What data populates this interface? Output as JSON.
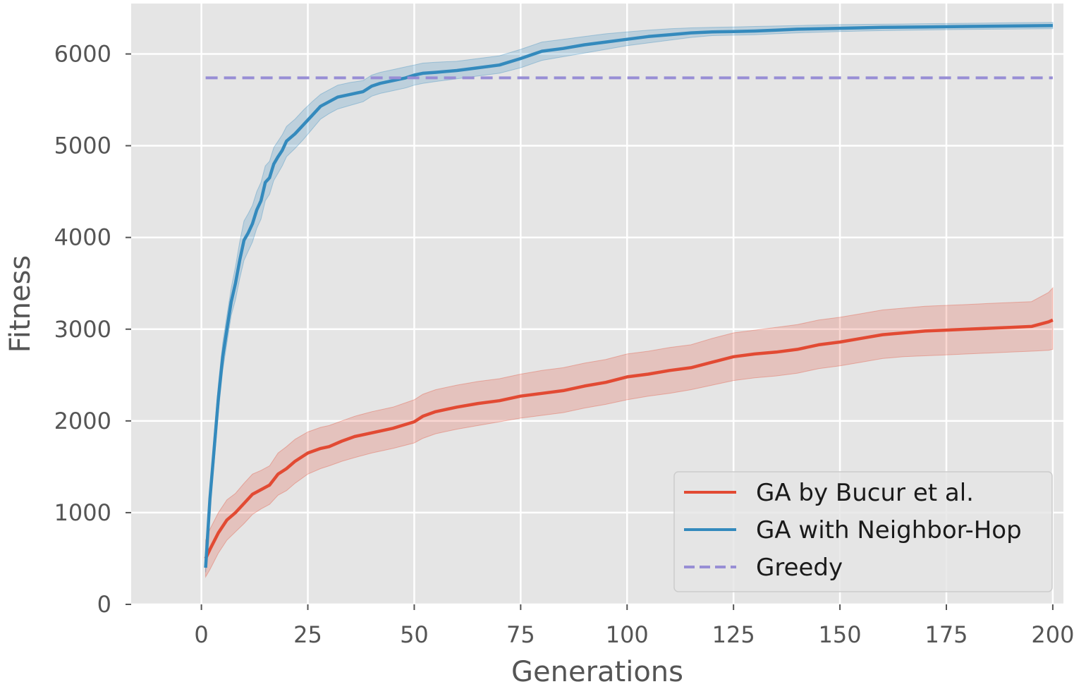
{
  "chart_data": {
    "type": "line",
    "title": "",
    "xlabel": "Generations",
    "ylabel": "Fitness",
    "xlim": [
      -16.5,
      202.5
    ],
    "ylim": [
      0,
      6550
    ],
    "xticks": [
      0,
      25,
      50,
      75,
      100,
      125,
      150,
      175,
      200
    ],
    "yticks": [
      0,
      1000,
      2000,
      3000,
      4000,
      5000,
      6000
    ],
    "grid": true,
    "legend_position": "lower right",
    "colors": {
      "background": "#e5e5e5",
      "grid": "#ffffff",
      "ga_bucur": "#e24a33",
      "ga_neighbor": "#348abd",
      "greedy": "#988ed5"
    },
    "series": [
      {
        "name": "GA by Bucur et al.",
        "color": "#e24a33",
        "style": "solid",
        "x": [
          1,
          2,
          4,
          6,
          8,
          10,
          12,
          14,
          16,
          18,
          20,
          22,
          25,
          28,
          30,
          33,
          36,
          40,
          45,
          50,
          52,
          55,
          60,
          65,
          70,
          75,
          80,
          85,
          90,
          95,
          100,
          105,
          110,
          115,
          120,
          125,
          130,
          135,
          140,
          145,
          150,
          155,
          160,
          165,
          170,
          175,
          180,
          185,
          190,
          195,
          199,
          200
        ],
        "y": [
          500,
          600,
          780,
          920,
          1000,
          1100,
          1200,
          1250,
          1300,
          1420,
          1480,
          1560,
          1650,
          1700,
          1720,
          1780,
          1830,
          1870,
          1920,
          1990,
          2050,
          2100,
          2150,
          2190,
          2220,
          2270,
          2300,
          2330,
          2380,
          2420,
          2480,
          2510,
          2550,
          2580,
          2640,
          2700,
          2730,
          2750,
          2780,
          2830,
          2860,
          2900,
          2940,
          2960,
          2980,
          2990,
          3000,
          3010,
          3020,
          3030,
          3080,
          3100
        ],
        "lower": [
          300,
          380,
          560,
          700,
          790,
          880,
          980,
          1040,
          1090,
          1190,
          1240,
          1320,
          1420,
          1480,
          1510,
          1560,
          1600,
          1650,
          1700,
          1760,
          1810,
          1860,
          1910,
          1950,
          1990,
          2030,
          2060,
          2090,
          2140,
          2180,
          2230,
          2270,
          2300,
          2340,
          2390,
          2440,
          2470,
          2490,
          2520,
          2570,
          2600,
          2640,
          2680,
          2700,
          2710,
          2720,
          2730,
          2740,
          2750,
          2760,
          2770,
          2780
        ],
        "upper": [
          700,
          820,
          1000,
          1140,
          1210,
          1320,
          1420,
          1460,
          1510,
          1650,
          1720,
          1800,
          1880,
          1930,
          1950,
          2000,
          2050,
          2100,
          2150,
          2230,
          2290,
          2340,
          2390,
          2430,
          2460,
          2510,
          2550,
          2580,
          2630,
          2670,
          2730,
          2760,
          2800,
          2830,
          2900,
          2960,
          2990,
          3020,
          3050,
          3100,
          3130,
          3170,
          3210,
          3230,
          3250,
          3260,
          3270,
          3280,
          3290,
          3300,
          3400,
          3450
        ]
      },
      {
        "name": "GA with Neighbor-Hop",
        "color": "#348abd",
        "style": "solid",
        "x": [
          1,
          2,
          3,
          4,
          5,
          6,
          7,
          8,
          9,
          10,
          11,
          12,
          13,
          14,
          15,
          16,
          17,
          18,
          19,
          20,
          22,
          24,
          26,
          28,
          30,
          32,
          35,
          38,
          40,
          42,
          45,
          48,
          50,
          52,
          55,
          60,
          65,
          70,
          75,
          80,
          85,
          90,
          95,
          100,
          105,
          110,
          115,
          120,
          125,
          130,
          135,
          140,
          150,
          160,
          170,
          180,
          190,
          200
        ],
        "y": [
          400,
          1150,
          1700,
          2250,
          2700,
          3000,
          3300,
          3500,
          3750,
          3970,
          4050,
          4150,
          4300,
          4400,
          4600,
          4650,
          4800,
          4880,
          4950,
          5050,
          5130,
          5230,
          5330,
          5430,
          5480,
          5530,
          5560,
          5590,
          5650,
          5680,
          5710,
          5740,
          5770,
          5790,
          5800,
          5820,
          5850,
          5880,
          5950,
          6030,
          6060,
          6100,
          6130,
          6160,
          6190,
          6210,
          6230,
          6240,
          6245,
          6250,
          6260,
          6270,
          6280,
          6290,
          6295,
          6300,
          6305,
          6310
        ],
        "lower": [
          350,
          1050,
          1550,
          2100,
          2550,
          2850,
          3150,
          3320,
          3550,
          3750,
          3850,
          3950,
          4100,
          4200,
          4400,
          4470,
          4620,
          4700,
          4780,
          4880,
          4970,
          5070,
          5180,
          5290,
          5350,
          5400,
          5440,
          5480,
          5540,
          5570,
          5600,
          5630,
          5660,
          5680,
          5700,
          5730,
          5760,
          5790,
          5850,
          5930,
          5970,
          6010,
          6050,
          6090,
          6120,
          6150,
          6180,
          6200,
          6205,
          6210,
          6220,
          6230,
          6245,
          6255,
          6262,
          6268,
          6272,
          6275
        ],
        "upper": [
          450,
          1250,
          1850,
          2400,
          2850,
          3150,
          3450,
          3680,
          3950,
          4180,
          4260,
          4350,
          4500,
          4600,
          4780,
          4830,
          4980,
          5050,
          5120,
          5210,
          5290,
          5390,
          5480,
          5560,
          5610,
          5660,
          5690,
          5710,
          5770,
          5800,
          5830,
          5860,
          5880,
          5900,
          5910,
          5920,
          5950,
          5980,
          6050,
          6130,
          6160,
          6190,
          6220,
          6240,
          6260,
          6275,
          6285,
          6290,
          6295,
          6300,
          6305,
          6310,
          6320,
          6325,
          6330,
          6335,
          6340,
          6345
        ]
      },
      {
        "name": "Greedy",
        "color": "#988ed5",
        "style": "dashed",
        "x": [
          1,
          200
        ],
        "y": [
          5740,
          5740
        ]
      }
    ]
  }
}
